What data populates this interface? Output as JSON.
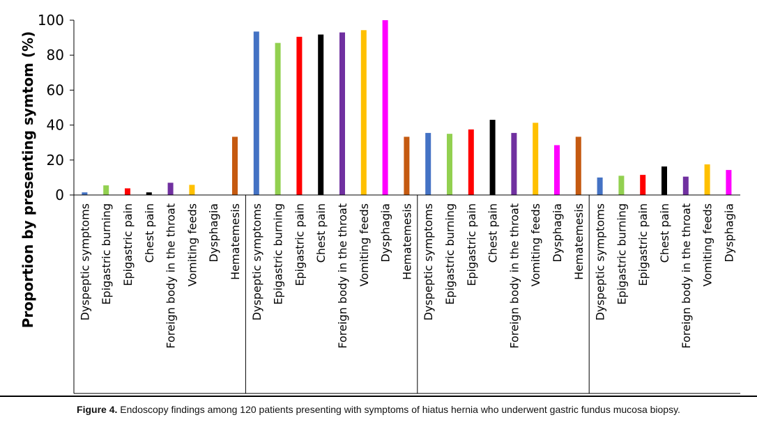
{
  "caption": {
    "label": "Figure 4.",
    "text": " Endoscopy findings among 120 patients presenting with symptoms of hiatus hernia who underwent gastric fundus mucosa biopsy."
  },
  "colors": {
    "Dyspeptic symptoms": "#4472C4",
    "Epigastric burning": "#92D050",
    "Epigastric pain": "#FF0000",
    "Chest pain": "#000000",
    "Foreign body in the throat": "#7030A0",
    "Vomiting feeds": "#FFC000",
    "Dysphagia": "#FF00FF",
    "Hematemesis": "#C55A11"
  },
  "chart_data": {
    "type": "bar",
    "ylabel": "Proportion by presenting symtom (%)",
    "xlabel": "",
    "ylim": [
      0,
      100
    ],
    "yticks": [
      0,
      20,
      40,
      60,
      80,
      100
    ],
    "grid": false,
    "groups": [
      {
        "name": "",
        "categories": [
          "Dyspeptic symptoms",
          "Epigastric burning",
          "Epigastric pain",
          "Chest pain",
          "Foreign body in the throat",
          "Vomiting feeds",
          "Dysphagia",
          "Hematemesis"
        ],
        "values": [
          1.5,
          5.5,
          3.8,
          1.5,
          7.0,
          5.8,
          0,
          33.3
        ]
      },
      {
        "name": "",
        "categories": [
          "Dyspeptic symptoms",
          "Epigastric burning",
          "Epigastric pain",
          "Chest pain",
          "Foreign body in the throat",
          "Vomiting feeds",
          "Dysphagia",
          "Hematemesis"
        ],
        "values": [
          93.5,
          87.0,
          90.5,
          91.8,
          93.0,
          94.3,
          100,
          33.3
        ]
      },
      {
        "name": "",
        "categories": [
          "Dyspeptic symptoms",
          "Epigastric burning",
          "Epigastric pain",
          "Chest pain",
          "Foreign body in the throat",
          "Vomiting feeds",
          "Dysphagia",
          "Hematemesis"
        ],
        "values": [
          35.5,
          35.0,
          37.5,
          43.0,
          35.5,
          41.3,
          28.5,
          33.3
        ]
      },
      {
        "name": "",
        "categories": [
          "Dyspeptic symptoms",
          "Epigastric burning",
          "Epigastric pain",
          "Chest pain",
          "Foreign body in the throat",
          "Vomiting feeds",
          "Dysphagia"
        ],
        "values": [
          10.0,
          11.0,
          11.5,
          16.3,
          10.5,
          17.5,
          14.3
        ]
      }
    ]
  }
}
